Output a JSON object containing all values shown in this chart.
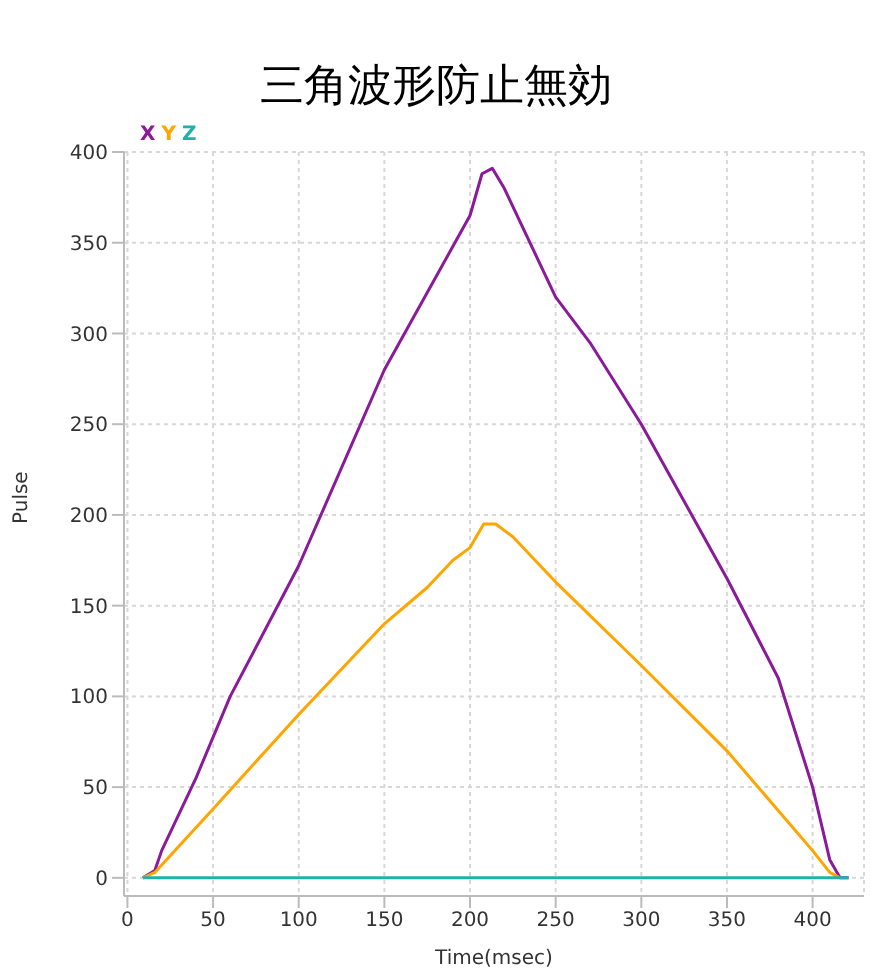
{
  "chart_data": {
    "type": "line",
    "title": "三角波形防止無効",
    "xlabel": "Time(msec)",
    "ylabel": "Pulse",
    "xlim": [
      -2,
      430
    ],
    "ylim": [
      -10,
      400
    ],
    "xticks": [
      0,
      50,
      100,
      150,
      200,
      250,
      300,
      350,
      400
    ],
    "yticks": [
      0,
      50,
      100,
      150,
      200,
      250,
      300,
      350,
      400
    ],
    "grid": true,
    "legend": "top left",
    "marker": "none",
    "line_style": "solid",
    "series": [
      {
        "name": "X",
        "color": "#8b1a9b",
        "x": [
          9,
          16,
          20,
          40,
          60,
          100,
          150,
          200,
          207,
          213,
          220,
          250,
          270,
          300,
          350,
          380,
          400,
          410,
          416,
          421
        ],
        "values": [
          0,
          4,
          15,
          55,
          100,
          172,
          280,
          365,
          388,
          391,
          380,
          320,
          295,
          250,
          165,
          110,
          50,
          10,
          0,
          0
        ]
      },
      {
        "name": "Y",
        "color": "#ffa500",
        "x": [
          9,
          16,
          50,
          100,
          150,
          175,
          190,
          200,
          208,
          215,
          225,
          250,
          300,
          350,
          400,
          410,
          416
        ],
        "values": [
          0,
          3,
          38,
          90,
          140,
          160,
          175,
          182,
          195,
          195,
          188,
          163,
          117,
          70,
          15,
          3,
          0
        ]
      },
      {
        "name": "Z",
        "color": "#20b2aa",
        "x": [
          9,
          421
        ],
        "values": [
          0,
          0
        ]
      }
    ]
  }
}
